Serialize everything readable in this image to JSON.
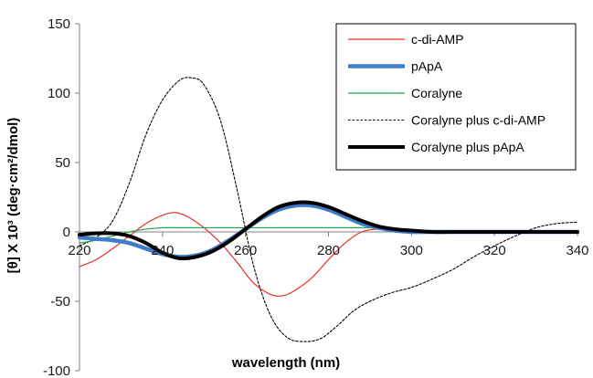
{
  "chart_data": {
    "type": "line",
    "title": "",
    "xlabel": "wavelength (nm)",
    "ylabel": "[θ] X 10³ (deg·cm²/dmol)",
    "xlim": [
      220,
      340
    ],
    "ylim": [
      -100,
      150
    ],
    "xticks": [
      220,
      240,
      260,
      280,
      300,
      320,
      340
    ],
    "yticks": [
      -100,
      -50,
      0,
      50,
      100,
      150
    ],
    "grid": false,
    "legend_position": "top-right",
    "series": [
      {
        "name": "c-di-AMP",
        "color": "#e8302a",
        "style": "solid-thin",
        "x": [
          220,
          224,
          228,
          232,
          236,
          240,
          243,
          246,
          250,
          254,
          258,
          262,
          266,
          269,
          272,
          276,
          280,
          284,
          288,
          292,
          296,
          300,
          310,
          320,
          330,
          340
        ],
        "y": [
          -25,
          -20,
          -12,
          -3,
          6,
          12,
          14,
          11,
          3,
          -8,
          -22,
          -37,
          -45,
          -46,
          -42,
          -33,
          -20,
          -8,
          0,
          2,
          1,
          0,
          0,
          0,
          0,
          0
        ]
      },
      {
        "name": "pApA",
        "color": "#3f7dc8",
        "style": "solid-medium",
        "x": [
          220,
          224,
          228,
          232,
          236,
          240,
          244,
          248,
          252,
          256,
          260,
          264,
          268,
          272,
          276,
          280,
          284,
          288,
          292,
          296,
          300,
          305,
          310,
          320,
          330,
          340
        ],
        "y": [
          -4,
          -5,
          -6,
          -8,
          -12,
          -16,
          -18,
          -17,
          -13,
          -6,
          2,
          10,
          16,
          19,
          19,
          16,
          11,
          6,
          3,
          1,
          0,
          0,
          0,
          0,
          0,
          0
        ]
      },
      {
        "name": "Coralyne",
        "color": "#1aa54a",
        "style": "solid-thin",
        "x": [
          220,
          224,
          228,
          232,
          236,
          240,
          244,
          250,
          260,
          270,
          280,
          285,
          290,
          295,
          300,
          310,
          320,
          330,
          340
        ],
        "y": [
          -8,
          -6,
          -3,
          0,
          2,
          3,
          3,
          3,
          3,
          3,
          3,
          3,
          3,
          2,
          1,
          0,
          0,
          0,
          0
        ]
      },
      {
        "name": "Coralyne plus c-di-AMP",
        "color": "#000000",
        "style": "dotted",
        "x": [
          220,
          224,
          228,
          232,
          236,
          240,
          244,
          247,
          250,
          254,
          258,
          262,
          266,
          270,
          274,
          278,
          282,
          286,
          290,
          295,
          300,
          305,
          310,
          315,
          320,
          325,
          330,
          335,
          340
        ],
        "y": [
          -10,
          -4,
          8,
          35,
          70,
          95,
          109,
          111,
          106,
          80,
          30,
          -25,
          -60,
          -76,
          -79,
          -77,
          -68,
          -57,
          -50,
          -44,
          -40,
          -34,
          -27,
          -18,
          -10,
          -3,
          3,
          6,
          7
        ]
      },
      {
        "name": "Coralyne plus pApA",
        "color": "#000000",
        "style": "solid-thick",
        "x": [
          220,
          224,
          228,
          232,
          236,
          240,
          244,
          248,
          252,
          256,
          260,
          264,
          268,
          272,
          276,
          280,
          284,
          288,
          292,
          296,
          300,
          305,
          310,
          320,
          330,
          340
        ],
        "y": [
          -2,
          -1,
          -1,
          -3,
          -8,
          -15,
          -19,
          -18,
          -14,
          -7,
          2,
          11,
          18,
          21,
          21,
          18,
          13,
          8,
          4,
          2,
          1,
          0,
          0,
          0,
          0,
          0
        ]
      }
    ]
  }
}
